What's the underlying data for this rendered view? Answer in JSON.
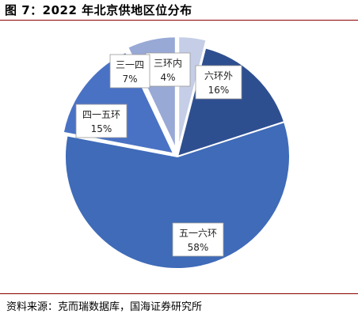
{
  "title": "图 7：2022 年北京供地区位分布",
  "source": "资料来源：克而瑞数据库，国海证券研究所",
  "chart_data": {
    "type": "pie",
    "slices": [
      {
        "name": "三环内",
        "pct": "4%",
        "value": 4,
        "color": "#c5cee6"
      },
      {
        "name": "六环外",
        "pct": "16%",
        "value": 16,
        "color": "#2e4f8f"
      },
      {
        "name": "五一六环",
        "pct": "58%",
        "value": 58,
        "color": "#3f6bb8"
      },
      {
        "name": "四一五环",
        "pct": "15%",
        "value": 15,
        "color": "#4a72c4"
      },
      {
        "name": "三一四",
        "pct": "7%",
        "value": 7,
        "color": "#98a9d6"
      }
    ],
    "start_angle_deg": 0,
    "direction": "clockwise"
  }
}
